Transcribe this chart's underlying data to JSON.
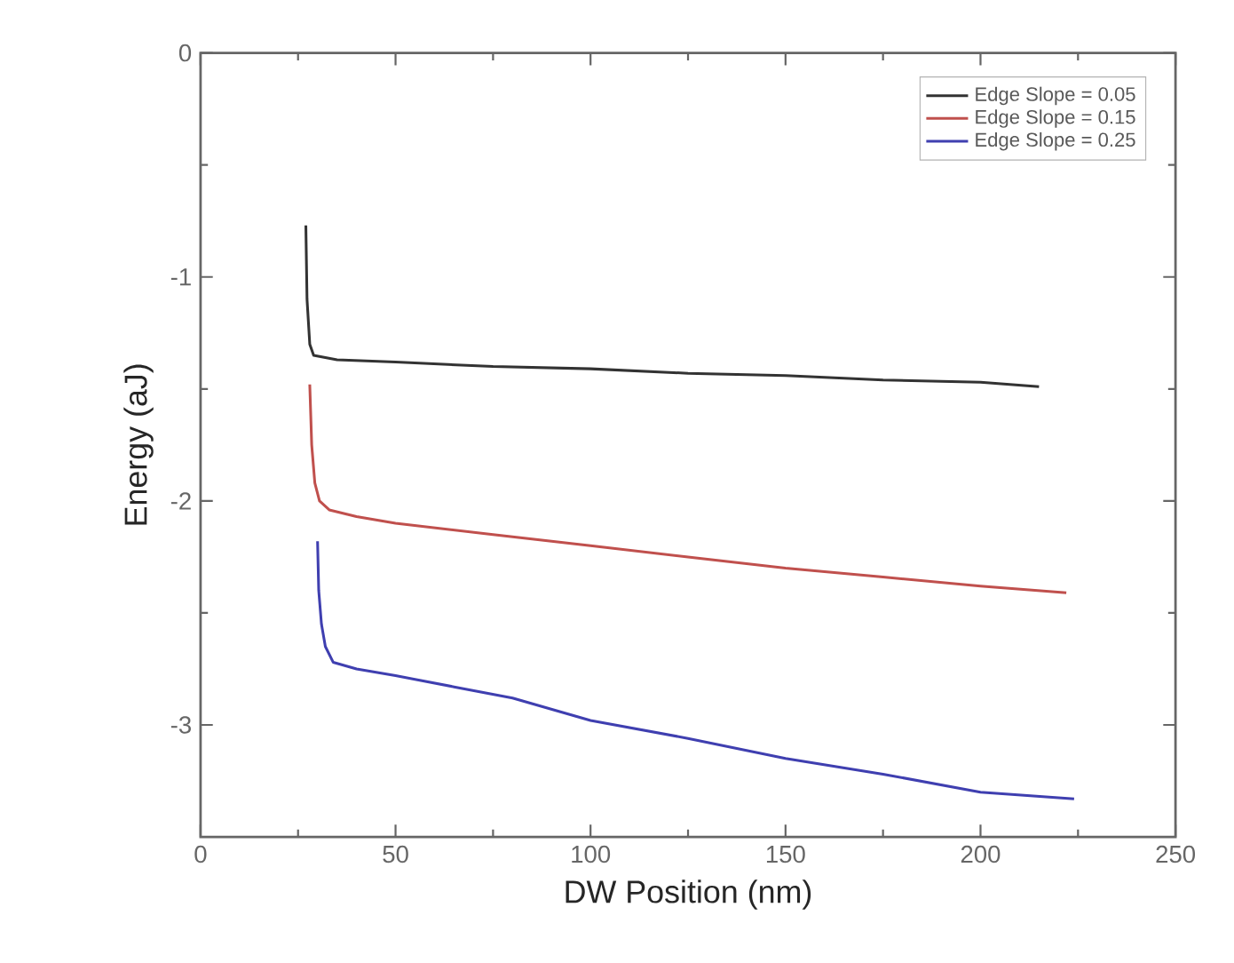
{
  "chart_data": {
    "type": "line",
    "xlabel": "DW Position (nm)",
    "ylabel": "Energy (aJ)",
    "xlim": [
      0,
      250
    ],
    "xticks": [
      0,
      50,
      100,
      150,
      200,
      250
    ],
    "ylim": [
      -3.5,
      0
    ],
    "yticks": [
      0,
      -1,
      -2,
      -3
    ],
    "legend": "top right",
    "grid": false,
    "marker": "none",
    "line_style": "solid",
    "series": [
      {
        "name": "Edge Slope = 0.05",
        "color": "#333333",
        "x": [
          27,
          27.3,
          28,
          29,
          32,
          35,
          50,
          75,
          100,
          125,
          150,
          175,
          200,
          215
        ],
        "values": [
          -0.77,
          -1.1,
          -1.3,
          -1.35,
          -1.36,
          -1.37,
          -1.38,
          -1.4,
          -1.41,
          -1.43,
          -1.44,
          -1.46,
          -1.47,
          -1.49
        ]
      },
      {
        "name": "Edge Slope = 0.15",
        "color": "#c0504d",
        "x": [
          28,
          28.5,
          29.3,
          30.5,
          33,
          40,
          50,
          75,
          100,
          125,
          150,
          175,
          200,
          222
        ],
        "values": [
          -1.48,
          -1.75,
          -1.92,
          -2.0,
          -2.04,
          -2.07,
          -2.1,
          -2.15,
          -2.2,
          -2.25,
          -2.3,
          -2.34,
          -2.38,
          -2.41
        ]
      },
      {
        "name": "Edge Slope = 0.25",
        "color": "#3f3fb0",
        "x": [
          30,
          30.3,
          31,
          32,
          34,
          40,
          50,
          65,
          80,
          90,
          100,
          125,
          150,
          175,
          200,
          224
        ],
        "values": [
          -2.18,
          -2.4,
          -2.55,
          -2.65,
          -2.72,
          -2.75,
          -2.78,
          -2.83,
          -2.88,
          -2.93,
          -2.98,
          -3.06,
          -3.15,
          -3.22,
          -3.3,
          -3.33
        ]
      }
    ]
  }
}
